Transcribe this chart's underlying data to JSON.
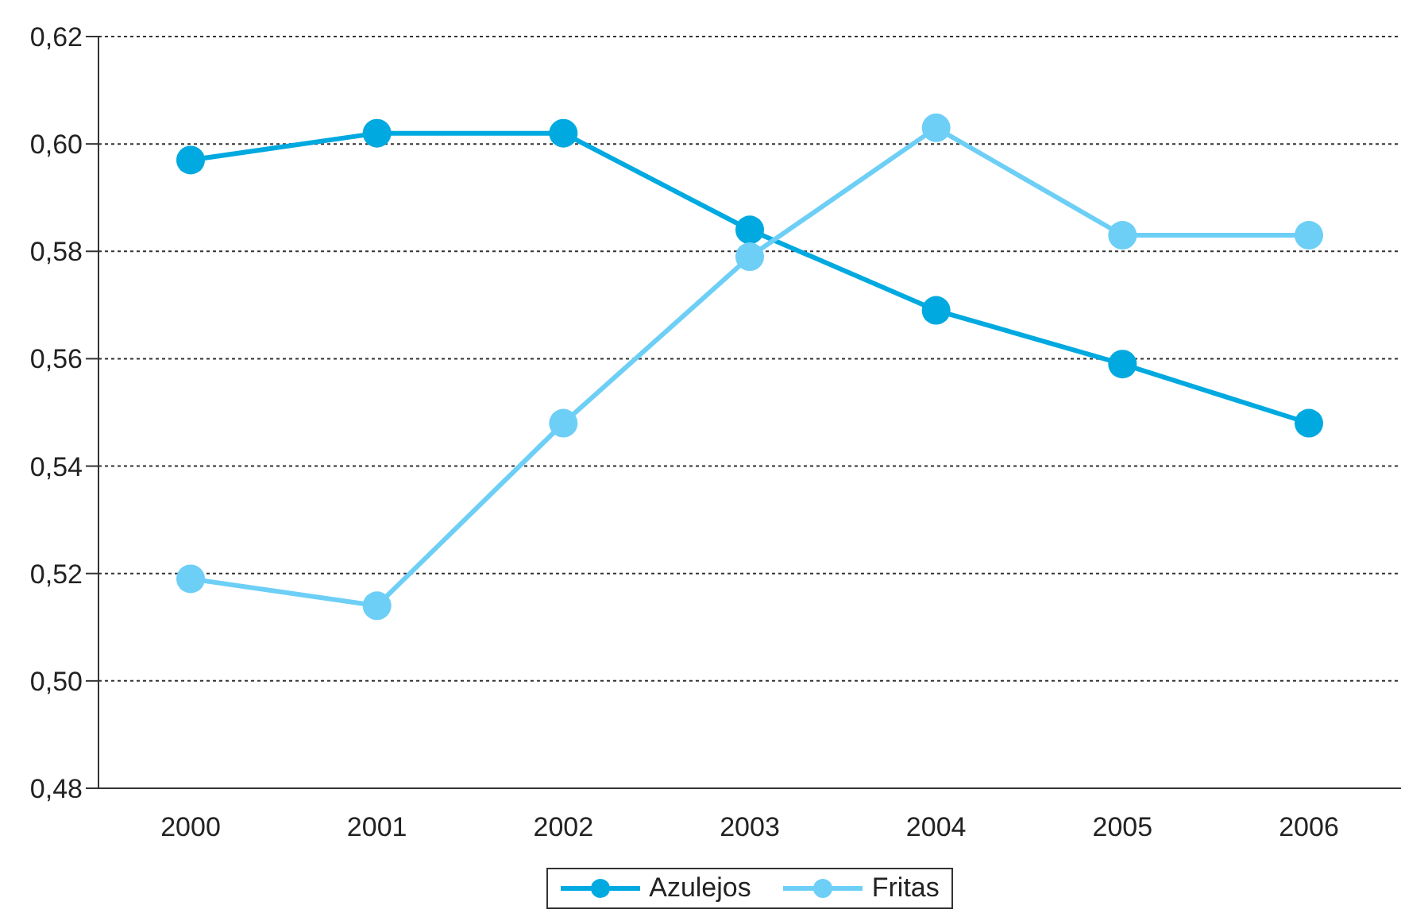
{
  "chart_data": {
    "type": "line",
    "categories": [
      "2000",
      "2001",
      "2002",
      "2003",
      "2004",
      "2005",
      "2006"
    ],
    "series": [
      {
        "name": "Azulejos",
        "color": "#00a9e0",
        "values": [
          0.597,
          0.602,
          0.602,
          0.584,
          0.569,
          0.559,
          0.548
        ]
      },
      {
        "name": "Fritas",
        "color": "#6dcff6",
        "values": [
          0.519,
          0.514,
          0.548,
          0.579,
          0.603,
          0.583,
          0.583
        ]
      }
    ],
    "ylim": [
      0.48,
      0.62
    ],
    "yticks": [
      {
        "value": 0.48,
        "label": "0,48"
      },
      {
        "value": 0.5,
        "label": "0,50"
      },
      {
        "value": 0.52,
        "label": "0,52"
      },
      {
        "value": 0.54,
        "label": "0,54"
      },
      {
        "value": 0.56,
        "label": "0,56"
      },
      {
        "value": 0.58,
        "label": "0,58"
      },
      {
        "value": 0.6,
        "label": "0,60"
      },
      {
        "value": 0.62,
        "label": "0,62"
      }
    ],
    "grid": "y",
    "legend": "bottom",
    "marker": "circle",
    "line_style": "solid"
  }
}
